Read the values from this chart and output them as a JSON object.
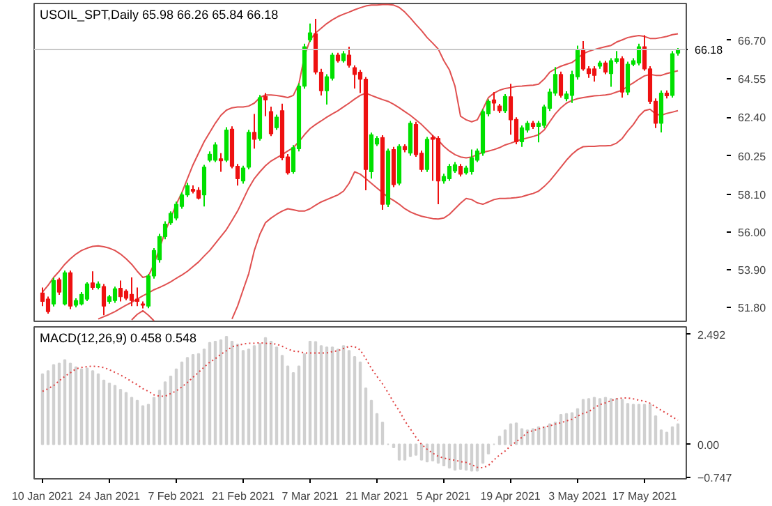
{
  "chart_data": [
    {
      "type": "candlestick",
      "title": "USOIL_SPT,Daily 65.98 66.26 65.84 66.18",
      "categories": [
        null,
        null,
        null,
        null,
        null,
        null,
        null,
        null,
        null,
        null,
        null,
        null,
        null,
        null,
        null,
        null,
        null,
        null,
        null,
        null,
        null,
        null,
        null,
        null,
        null,
        null,
        null,
        null,
        null,
        null,
        null,
        null,
        null,
        null,
        null,
        null,
        null,
        null,
        null,
        null,
        null,
        null,
        null,
        null,
        null,
        null,
        null,
        null,
        null,
        null,
        null,
        null,
        null,
        null,
        null,
        null,
        null,
        null,
        null,
        null,
        null,
        null,
        null,
        null,
        null,
        null,
        null,
        null,
        null,
        null,
        null,
        null,
        null,
        null,
        null,
        null,
        null,
        null,
        null,
        null,
        null,
        null,
        null,
        null,
        null,
        null,
        null,
        null,
        null,
        null,
        null,
        null,
        null,
        null,
        null,
        null,
        null,
        null,
        null,
        null,
        null,
        null,
        null,
        null,
        null,
        null,
        null,
        null,
        null,
        null,
        null,
        null,
        null,
        null,
        null
      ],
      "tick_labels": "y",
      "ohlc": [
        [
          52.6,
          52.91,
          51.87,
          52.13
        ],
        [
          52.26,
          52.4,
          51.45,
          51.56
        ],
        [
          51.99,
          53.45,
          51.85,
          53.29
        ],
        [
          53.34,
          53.45,
          52.5,
          52.65
        ],
        [
          51.99,
          53.85,
          51.9,
          53.73
        ],
        [
          53.73,
          53.85,
          51.7,
          51.87
        ],
        [
          51.92,
          52.3,
          51.8,
          52.18
        ],
        [
          51.99,
          52.65,
          51.9,
          52.52
        ],
        [
          52.26,
          53.2,
          52.15,
          53.11
        ],
        [
          53.16,
          53.81,
          52.78,
          52.91
        ],
        [
          52.91,
          53.25,
          52.8,
          53.11
        ],
        [
          52.96,
          53.1,
          51.36,
          51.87
        ],
        [
          52.13,
          52.5,
          52.0,
          52.39
        ],
        [
          52.18,
          52.95,
          52.05,
          52.83
        ],
        [
          52.86,
          53.29,
          52.13,
          52.39
        ],
        [
          52.7,
          52.8,
          52.2,
          52.31
        ],
        [
          52.52,
          53.47,
          51.87,
          52.18
        ],
        [
          52.26,
          52.91,
          51.87,
          52.13
        ],
        [
          51.99,
          52.13,
          51.74,
          51.92
        ],
        [
          51.87,
          53.65,
          51.75,
          53.55
        ],
        [
          53.55,
          55.1,
          53.4,
          54.97
        ],
        [
          54.46,
          55.9,
          54.3,
          55.75
        ],
        [
          55.75,
          56.6,
          55.6,
          56.44
        ],
        [
          56.52,
          57.15,
          56.4,
          57.04
        ],
        [
          56.78,
          57.7,
          56.65,
          57.55
        ],
        [
          57.43,
          58.2,
          57.3,
          58.07
        ],
        [
          58.07,
          58.75,
          57.95,
          58.59
        ],
        [
          58.38,
          58.6,
          58.15,
          58.28
        ],
        [
          58.33,
          58.5,
          57.81,
          57.89
        ],
        [
          58.07,
          59.75,
          57.43,
          59.62
        ],
        [
          60.01,
          60.5,
          59.9,
          60.34
        ],
        [
          60.01,
          61.0,
          59.9,
          60.86
        ],
        [
          60.09,
          60.4,
          59.36,
          59.98
        ],
        [
          60.01,
          61.85,
          59.9,
          61.69
        ],
        [
          61.74,
          61.9,
          59.55,
          59.67
        ],
        [
          59.67,
          59.8,
          58.59,
          58.98
        ],
        [
          58.85,
          59.7,
          58.7,
          59.57
        ],
        [
          59.62,
          61.7,
          59.5,
          61.56
        ],
        [
          61.56,
          62.59,
          60.65,
          61.17
        ],
        [
          61.22,
          63.65,
          61.1,
          63.5
        ],
        [
          63.57,
          63.75,
          62.46,
          63.37
        ],
        [
          62.72,
          63.0,
          61.35,
          61.48
        ],
        [
          61.82,
          62.55,
          61.7,
          62.41
        ],
        [
          62.77,
          63.16,
          60.0,
          60.14
        ],
        [
          60.19,
          60.35,
          59.2,
          59.31
        ],
        [
          59.36,
          60.85,
          59.25,
          60.71
        ],
        [
          60.65,
          64.3,
          60.5,
          64.14
        ],
        [
          64.14,
          66.5,
          64.0,
          66.34
        ],
        [
          66.72,
          67.63,
          66.6,
          67.11
        ],
        [
          67.06,
          67.89,
          64.79,
          64.92
        ],
        [
          64.92,
          65.1,
          63.62,
          63.88
        ],
        [
          63.88,
          64.8,
          63.11,
          64.66
        ],
        [
          64.58,
          66.0,
          64.45,
          65.87
        ],
        [
          65.87,
          66.0,
          65.45,
          65.56
        ],
        [
          65.56,
          66.1,
          65.45,
          65.95
        ],
        [
          65.87,
          66.34,
          65.17,
          65.3
        ],
        [
          65.17,
          65.3,
          64.01,
          64.79
        ],
        [
          64.92,
          65.05,
          63.75,
          64.53
        ],
        [
          64.53,
          64.65,
          58.33,
          59.49
        ],
        [
          59.36,
          61.55,
          58.98,
          61.43
        ],
        [
          60.91,
          61.35,
          60.8,
          61.22
        ],
        [
          61.27,
          61.4,
          57.24,
          57.55
        ],
        [
          57.55,
          60.65,
          57.4,
          60.52
        ],
        [
          60.6,
          60.75,
          58.5,
          58.64
        ],
        [
          58.72,
          60.9,
          58.6,
          60.78
        ],
        [
          60.78,
          60.9,
          60.45,
          60.6
        ],
        [
          60.4,
          62.2,
          60.25,
          62.07
        ],
        [
          62.0,
          62.15,
          60.2,
          60.32
        ],
        [
          60.4,
          60.55,
          59.35,
          59.49
        ],
        [
          59.49,
          61.3,
          59.35,
          61.17
        ],
        [
          61.27,
          61.4,
          58.85,
          61.17
        ],
        [
          61.22,
          61.35,
          57.55,
          58.85
        ],
        [
          58.85,
          59.25,
          58.7,
          59.1
        ],
        [
          58.98,
          59.8,
          58.85,
          59.67
        ],
        [
          59.41,
          59.9,
          59.3,
          59.75
        ],
        [
          59.67,
          59.8,
          59.1,
          59.23
        ],
        [
          59.31,
          59.7,
          59.2,
          59.57
        ],
        [
          59.36,
          60.6,
          59.2,
          60.14
        ],
        [
          60.01,
          60.65,
          59.9,
          60.52
        ],
        [
          60.4,
          62.85,
          60.25,
          62.72
        ],
        [
          62.59,
          63.4,
          62.45,
          63.29
        ],
        [
          63.37,
          63.81,
          62.77,
          63.19
        ],
        [
          63.03,
          63.15,
          62.65,
          62.77
        ],
        [
          62.77,
          63.7,
          62.65,
          63.57
        ],
        [
          63.55,
          64.27,
          61.43,
          62.26
        ],
        [
          62.28,
          62.4,
          60.9,
          61.04
        ],
        [
          61.04,
          61.95,
          60.75,
          61.82
        ],
        [
          61.69,
          62.2,
          61.55,
          62.07
        ],
        [
          62.07,
          62.2,
          61.75,
          61.89
        ],
        [
          61.89,
          62.2,
          61.0,
          62.07
        ],
        [
          61.95,
          63.1,
          61.8,
          62.98
        ],
        [
          62.9,
          64.0,
          62.75,
          63.81
        ],
        [
          63.75,
          65.2,
          63.6,
          64.79
        ],
        [
          64.79,
          64.95,
          63.5,
          63.62
        ],
        [
          63.44,
          63.85,
          63.3,
          63.7
        ],
        [
          63.62,
          65.0,
          63.2,
          64.79
        ],
        [
          64.66,
          66.4,
          64.5,
          66.13
        ],
        [
          66.21,
          66.65,
          65.0,
          65.1
        ],
        [
          65.1,
          65.25,
          64.6,
          64.84
        ],
        [
          65.1,
          65.25,
          64.4,
          64.74
        ],
        [
          65.25,
          65.55,
          65.1,
          65.43
        ],
        [
          65.43,
          65.55,
          64.8,
          64.92
        ],
        [
          64.84,
          65.7,
          64.1,
          65.56
        ],
        [
          65.51,
          66.1,
          65.4,
          65.67
        ],
        [
          65.67,
          65.8,
          63.5,
          63.81
        ],
        [
          63.81,
          65.5,
          63.65,
          65.36
        ],
        [
          65.36,
          65.7,
          65.25,
          65.56
        ],
        [
          65.43,
          66.5,
          65.3,
          66.34
        ],
        [
          66.34,
          66.98,
          65.0,
          65.1
        ],
        [
          65.1,
          65.25,
          63.15,
          63.29
        ],
        [
          63.29,
          63.45,
          61.8,
          62.07
        ],
        [
          62.07,
          63.9,
          61.56,
          63.75
        ],
        [
          63.75,
          63.9,
          63.45,
          63.6
        ],
        [
          63.62,
          66.1,
          63.5,
          65.95
        ],
        [
          65.98,
          66.26,
          65.84,
          66.18
        ]
      ],
      "colors": [
        "#ee1111",
        "#ee1111",
        "#00e000",
        "#ee1111",
        "#00e000",
        "#ee1111",
        "#00e000",
        "#00e000",
        "#00e000",
        "#ee1111",
        "#00e000",
        "#ee1111",
        "#00e000",
        "#00e000",
        "#ee1111",
        "#ee1111",
        "#ee1111",
        "#ee1111",
        "#ee1111",
        "#00e000",
        "#00e000",
        "#00e000",
        "#00e000",
        "#00e000",
        "#00e000",
        "#00e000",
        "#00e000",
        "#ee1111",
        "#ee1111",
        "#00e000",
        "#00e000",
        "#00e000",
        "#ee1111",
        "#00e000",
        "#ee1111",
        "#ee1111",
        "#00e000",
        "#00e000",
        "#ee1111",
        "#00e000",
        "#ee1111",
        "#ee1111",
        "#00e000",
        "#ee1111",
        "#ee1111",
        "#00e000",
        "#00e000",
        "#00e000",
        "#00e000",
        "#ee1111",
        "#ee1111",
        "#00e000",
        "#00e000",
        "#ee1111",
        "#00e000",
        "#ee1111",
        "#ee1111",
        "#ee1111",
        "#ee1111",
        "#00e000",
        "#00e000",
        "#ee1111",
        "#00e000",
        "#ee1111",
        "#00e000",
        "#ee1111",
        "#00e000",
        "#ee1111",
        "#ee1111",
        "#00e000",
        "#ee1111",
        "#ee1111",
        "#00e000",
        "#00e000",
        "#00e000",
        "#ee1111",
        "#00e000",
        "#00e000",
        "#00e000",
        "#00e000",
        "#00e000",
        "#ee1111",
        "#ee1111",
        "#00e000",
        "#ee1111",
        "#ee1111",
        "#00e000",
        "#00e000",
        "#ee1111",
        "#00e000",
        "#00e000",
        "#00e000",
        "#00e000",
        "#ee1111",
        "#00e000",
        "#00e000",
        "#00e000",
        "#ee1111",
        "#ee1111",
        "#ee1111",
        "#00e000",
        "#ee1111",
        "#00e000",
        "#00e000",
        "#ee1111",
        "#00e000",
        "#00e000",
        "#00e000",
        "#ee1111",
        "#ee1111",
        "#ee1111",
        "#00e000",
        "#ee1111",
        "#00e000",
        "#00e000"
      ],
      "series": [
        {
          "type": "line",
          "color": "#e05050",
          "line_style": "solid",
          "values": [
            52.65,
            53.03,
            53.47,
            53.81,
            54.2,
            54.51,
            54.77,
            54.97,
            55.1,
            55.2,
            55.23,
            55.18,
            55.1,
            54.97,
            54.77,
            54.51,
            54.2,
            53.81,
            53.47,
            53.55,
            54.2,
            55.1,
            56.01,
            56.78,
            57.55,
            58.2,
            58.98,
            59.75,
            60.4,
            61.04,
            61.56,
            62.07,
            62.51,
            62.8,
            62.93,
            62.98,
            62.98,
            63.03,
            63.19,
            63.5,
            63.65,
            63.65,
            63.62,
            63.57,
            63.5,
            63.62,
            64.27,
            65.82,
            66.72,
            67.11,
            67.37,
            67.63,
            67.84,
            68.02,
            68.15,
            68.27,
            68.4,
            68.51,
            68.61,
            68.66,
            68.66,
            68.69,
            68.69,
            68.66,
            68.53,
            68.27,
            67.94,
            67.58,
            67.24,
            66.85,
            66.54,
            66.21,
            65.56,
            65.05,
            64.14,
            62.46,
            62.26,
            62.15,
            62.26,
            62.85,
            63.5,
            63.75,
            63.91,
            64.01,
            64.06,
            64.12,
            64.14,
            64.17,
            64.19,
            64.25,
            64.53,
            64.92,
            65.1,
            65.25,
            65.36,
            65.46,
            65.69,
            65.95,
            66.08,
            66.18,
            66.26,
            66.34,
            66.41,
            66.6,
            66.72,
            66.85,
            66.91,
            66.96,
            66.91,
            66.8,
            66.8,
            66.85,
            66.91,
            67.01,
            67.06
          ]
        },
        {
          "type": "line",
          "color": "#e05050",
          "line_style": "solid",
          "values": [
            null,
            null,
            null,
            null,
            null,
            null,
            null,
            null,
            null,
            null,
            51.15,
            51.28,
            51.41,
            51.56,
            51.74,
            51.92,
            52.08,
            52.26,
            52.44,
            52.6,
            52.78,
            52.91,
            53.06,
            53.22,
            53.42,
            53.6,
            53.81,
            54.07,
            54.33,
            54.66,
            54.97,
            55.36,
            55.75,
            56.14,
            56.65,
            57.17,
            57.81,
            58.46,
            58.98,
            59.36,
            59.7,
            59.96,
            60.14,
            60.32,
            60.52,
            60.71,
            61.04,
            61.43,
            61.77,
            62.0,
            62.2,
            62.41,
            62.59,
            62.77,
            62.98,
            63.19,
            63.42,
            63.62,
            63.75,
            63.62,
            63.5,
            63.39,
            63.29,
            63.13,
            62.93,
            62.72,
            62.51,
            62.26,
            62.0,
            61.69,
            61.38,
            61.12,
            60.78,
            60.52,
            60.32,
            60.19,
            60.14,
            60.19,
            60.32,
            60.45,
            60.52,
            60.6,
            60.71,
            60.86,
            60.96,
            61.07,
            61.17,
            61.25,
            61.33,
            61.43,
            61.69,
            62.15,
            62.59,
            62.93,
            63.19,
            63.34,
            63.44,
            63.5,
            63.55,
            63.6,
            63.62,
            63.65,
            63.7,
            63.81,
            63.91,
            64.14,
            64.32,
            64.53,
            64.71,
            64.79,
            64.74,
            64.74,
            64.84,
            64.92,
            65.0
          ]
        },
        {
          "type": "line",
          "color": "#e05050",
          "line_style": "solid",
          "values": [
            null,
            null,
            null,
            null,
            null,
            null,
            null,
            null,
            null,
            null,
            null,
            null,
            null,
            null,
            null,
            null,
            51.1,
            51.41,
            51.61,
            51.36,
            51.05,
            null,
            null,
            null,
            null,
            null,
            null,
            null,
            null,
            null,
            null,
            null,
            null,
            null,
            51.15,
            51.87,
            52.78,
            53.68,
            54.97,
            55.88,
            56.52,
            56.78,
            56.99,
            57.17,
            57.3,
            57.24,
            57.17,
            57.17,
            57.3,
            57.5,
            57.68,
            57.81,
            57.94,
            58.07,
            58.28,
            58.72,
            59.36,
            59.23,
            58.98,
            58.72,
            58.46,
            58.2,
            57.94,
            57.76,
            57.55,
            57.3,
            57.12,
            56.99,
            56.88,
            56.81,
            56.75,
            56.73,
            56.78,
            56.99,
            57.3,
            57.61,
            57.87,
            57.81,
            57.63,
            57.55,
            57.68,
            57.81,
            57.87,
            57.87,
            57.89,
            57.92,
            57.97,
            58.07,
            58.15,
            58.28,
            58.54,
            58.85,
            59.23,
            59.62,
            60.01,
            60.34,
            60.6,
            60.76,
            60.78,
            60.78,
            60.81,
            60.81,
            60.83,
            60.96,
            61.22,
            61.64,
            62.0,
            62.46,
            62.77,
            62.85,
            62.59,
            62.51,
            62.62,
            62.69,
            62.77
          ]
        }
      ],
      "ylim": [
        51.02,
        68.75
      ],
      "yticks": [
        {
          "value": 66.7,
          "label": "66.70"
        },
        {
          "value": 64.55,
          "label": "64.55"
        },
        {
          "value": 62.4,
          "label": "62.40"
        },
        {
          "value": 60.25,
          "label": "60.25"
        },
        {
          "value": 58.1,
          "label": "58.10"
        },
        {
          "value": 56.0,
          "label": "56.00"
        },
        {
          "value": 53.9,
          "label": "53.90"
        },
        {
          "value": 51.8,
          "label": "51.80"
        }
      ],
      "ref_lines": [
        {
          "axis": "y",
          "value": 66.18,
          "label": "66.18",
          "color": "#c8c8c8"
        }
      ]
    },
    {
      "type": "bar",
      "title": "MACD(12,26,9) 0.458 0.548",
      "categories": [
        "10 Jan 2021",
        null,
        null,
        null,
        null,
        null,
        null,
        null,
        null,
        null,
        null,
        null,
        "24 Jan 2021",
        null,
        null,
        null,
        null,
        null,
        null,
        null,
        null,
        null,
        null,
        null,
        "7 Feb 2021",
        null,
        null,
        null,
        null,
        null,
        null,
        null,
        null,
        null,
        null,
        null,
        "21 Feb 2021",
        null,
        null,
        null,
        null,
        null,
        null,
        null,
        null,
        null,
        null,
        null,
        "7 Mar 2021",
        null,
        null,
        null,
        null,
        null,
        null,
        null,
        null,
        null,
        null,
        null,
        "21 Mar 2021",
        null,
        null,
        null,
        null,
        null,
        null,
        null,
        null,
        null,
        null,
        null,
        "5 Apr 2021",
        null,
        null,
        null,
        null,
        null,
        null,
        null,
        null,
        null,
        null,
        null,
        "19 Apr 2021",
        null,
        null,
        null,
        null,
        null,
        null,
        null,
        null,
        null,
        null,
        null,
        "3 May 2021",
        null,
        null,
        null,
        null,
        null,
        null,
        null,
        null,
        null,
        null,
        null,
        "17 May 2021",
        null,
        null,
        null,
        null,
        null,
        null
      ],
      "series": [
        {
          "type": "bar",
          "color": "#d0d0d0",
          "values": [
            1.59,
            1.66,
            1.8,
            1.83,
            1.91,
            1.83,
            1.75,
            1.7,
            1.72,
            1.66,
            1.59,
            1.45,
            1.38,
            1.33,
            1.24,
            1.17,
            1.06,
            0.99,
            0.87,
            0.9,
            1.06,
            1.22,
            1.41,
            1.54,
            1.7,
            1.86,
            1.96,
            2.03,
            2.05,
            2.15,
            2.3,
            2.33,
            2.36,
            2.44,
            2.33,
            2.26,
            2.12,
            2.15,
            2.23,
            2.28,
            2.41,
            2.33,
            2.2,
            2.01,
            1.77,
            1.62,
            1.77,
            2.05,
            2.33,
            2.32,
            2.23,
            2.2,
            2.2,
            2.15,
            2.23,
            2.12,
            1.98,
            1.86,
            1.27,
            0.99,
            0.69,
            0.5,
            0.0,
            -0.07,
            -0.35,
            -0.35,
            -0.27,
            -0.24,
            -0.35,
            -0.39,
            -0.37,
            -0.42,
            -0.48,
            -0.53,
            -0.58,
            -0.56,
            -0.58,
            -0.6,
            -0.6,
            -0.42,
            -0.21,
            0.0,
            0.18,
            0.32,
            0.46,
            0.48,
            0.35,
            0.32,
            0.35,
            0.39,
            0.39,
            0.46,
            0.5,
            0.67,
            0.69,
            0.71,
            0.8,
            1.01,
            1.03,
            1.06,
            1.03,
            1.06,
            1.03,
            1.03,
            1.01,
            0.92,
            0.9,
            0.9,
            0.9,
            0.9,
            0.64,
            0.32,
            0.27,
            0.39,
            0.458
          ]
        },
        {
          "type": "line",
          "color": "#e04040",
          "line_style": "dotted",
          "values": [
            1.2,
            1.26,
            1.33,
            1.44,
            1.54,
            1.62,
            1.71,
            1.74,
            1.76,
            1.77,
            1.76,
            1.74,
            1.69,
            1.63,
            1.57,
            1.5,
            1.42,
            1.35,
            1.26,
            1.2,
            1.12,
            1.09,
            1.09,
            1.15,
            1.21,
            1.3,
            1.4,
            1.52,
            1.63,
            1.75,
            1.86,
            1.94,
            2.04,
            2.12,
            2.21,
            2.24,
            2.27,
            2.29,
            2.29,
            2.3,
            2.29,
            2.28,
            2.27,
            2.22,
            2.16,
            2.11,
            2.1,
            2.07,
            2.07,
            2.07,
            2.07,
            2.07,
            2.1,
            2.12,
            2.17,
            2.22,
            2.21,
            2.14,
            1.94,
            1.72,
            1.54,
            1.37,
            1.17,
            0.95,
            0.76,
            0.53,
            0.35,
            0.16,
            0.0,
            -0.11,
            -0.2,
            -0.27,
            -0.31,
            -0.34,
            -0.36,
            -0.39,
            -0.41,
            -0.46,
            -0.52,
            -0.53,
            -0.48,
            -0.35,
            -0.24,
            -0.15,
            -0.03,
            0.06,
            0.16,
            0.27,
            0.31,
            0.35,
            0.39,
            0.42,
            0.46,
            0.49,
            0.53,
            0.57,
            0.64,
            0.7,
            0.74,
            0.83,
            0.9,
            0.94,
            0.99,
            1.03,
            1.05,
            1.05,
            1.03,
            1.0,
            0.98,
            0.93,
            0.85,
            0.77,
            0.7,
            0.62,
            0.548
          ]
        }
      ],
      "ylim": [
        -0.78,
        2.66
      ],
      "yticks": [
        2.492,
        {
          "value": 0,
          "label": "0.00"
        },
        -0.747
      ]
    }
  ]
}
